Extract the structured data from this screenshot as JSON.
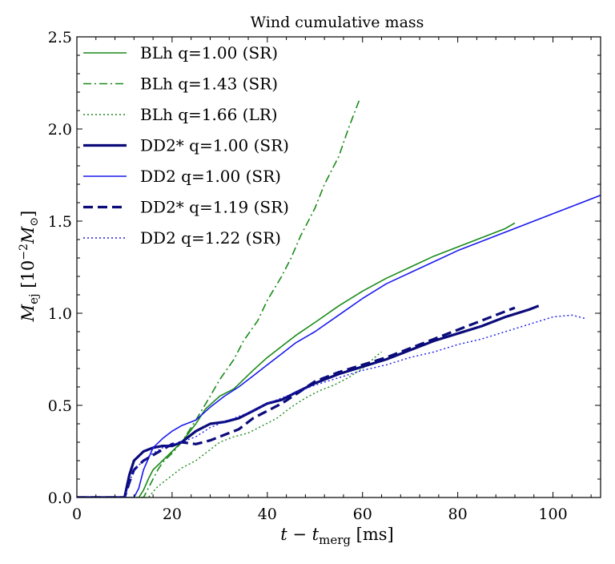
{
  "chart_data": {
    "type": "line",
    "title": "Wind cumulative mass",
    "xlabel": {
      "main": "t − t",
      "sub": "merg",
      "unit": " [ms]"
    },
    "ylabel": {
      "main": "M",
      "sub": "ej",
      "unit": " [10",
      "exp": "−2",
      "unit2": "M",
      "unit2_sub": "⊙",
      "close": "]"
    },
    "xlim": [
      0,
      110
    ],
    "ylim": [
      0,
      2.5
    ],
    "xticks": [
      0,
      20,
      40,
      60,
      80,
      100
    ],
    "xtick_labels": [
      "0",
      "20",
      "40",
      "60",
      "80",
      "100"
    ],
    "yticks": [
      0,
      0.5,
      1.0,
      1.5,
      2.0,
      2.5
    ],
    "ytick_labels": [
      "0.0",
      "0.5",
      "1.0",
      "1.5",
      "2.0",
      "2.5"
    ],
    "grid": false,
    "legend_position": "top-left",
    "series": [
      {
        "name": "BLh q=1.00 (SR)",
        "color": "#1a8a1a",
        "dash": "solid",
        "width": 1.6,
        "x": [
          0,
          13,
          14,
          15,
          16,
          18,
          20,
          22,
          25,
          27,
          30,
          33,
          35,
          37,
          40,
          43,
          46,
          50,
          55,
          60,
          65,
          70,
          75,
          80,
          85,
          90,
          92
        ],
        "y": [
          0,
          0,
          0.04,
          0.1,
          0.15,
          0.2,
          0.25,
          0.3,
          0.4,
          0.48,
          0.55,
          0.59,
          0.64,
          0.69,
          0.76,
          0.82,
          0.88,
          0.95,
          1.04,
          1.12,
          1.19,
          1.25,
          1.31,
          1.36,
          1.41,
          1.46,
          1.49
        ]
      },
      {
        "name": "BLh q=1.43 (SR)",
        "color": "#1a8a1a",
        "dash": "dashdot",
        "width": 1.6,
        "x": [
          0,
          14,
          15,
          16,
          17,
          18,
          20,
          22,
          25,
          28,
          30,
          33,
          35,
          38,
          40,
          43,
          45,
          47,
          50,
          52,
          55,
          57,
          59.5
        ],
        "y": [
          0,
          0,
          0.05,
          0.1,
          0.15,
          0.19,
          0.24,
          0.3,
          0.42,
          0.55,
          0.64,
          0.75,
          0.85,
          0.96,
          1.07,
          1.2,
          1.3,
          1.42,
          1.57,
          1.7,
          1.85,
          2.0,
          2.17
        ]
      },
      {
        "name": "BLh q=1.66 (LR)",
        "color": "#1a8a1a",
        "dash": "dotted",
        "width": 1.4,
        "x": [
          0,
          15,
          16,
          17,
          18,
          20,
          22,
          25,
          28,
          30,
          33,
          36,
          39,
          42,
          45,
          48,
          51,
          54,
          57,
          60,
          63,
          64
        ],
        "y": [
          0,
          0,
          0.03,
          0.06,
          0.08,
          0.12,
          0.16,
          0.2,
          0.26,
          0.3,
          0.33,
          0.35,
          0.39,
          0.43,
          0.49,
          0.54,
          0.58,
          0.61,
          0.65,
          0.7,
          0.77,
          0.79
        ]
      },
      {
        "name": "DD2* q=1.00 (SR)",
        "color": "#0b0b7a",
        "dash": "solid",
        "width": 3.2,
        "x": [
          0,
          10,
          11,
          12,
          14,
          16,
          18,
          20,
          22,
          25,
          28,
          31,
          34,
          37,
          40,
          43,
          46,
          50,
          55,
          60,
          65,
          70,
          75,
          80,
          85,
          90,
          95,
          97
        ],
        "y": [
          0,
          0,
          0.12,
          0.2,
          0.25,
          0.27,
          0.28,
          0.28,
          0.3,
          0.36,
          0.4,
          0.41,
          0.43,
          0.47,
          0.51,
          0.53,
          0.57,
          0.62,
          0.67,
          0.71,
          0.75,
          0.8,
          0.85,
          0.89,
          0.93,
          0.98,
          1.02,
          1.04
        ]
      },
      {
        "name": "DD2 q=1.00 (SR)",
        "color": "#1a1aee",
        "dash": "solid",
        "width": 1.6,
        "x": [
          0,
          12,
          13,
          14,
          16,
          18,
          20,
          22,
          25,
          28,
          31,
          34,
          37,
          40,
          43,
          46,
          50,
          55,
          60,
          65,
          70,
          75,
          80,
          85,
          90,
          95,
          100,
          105,
          110
        ],
        "y": [
          0,
          0,
          0.05,
          0.15,
          0.27,
          0.32,
          0.36,
          0.39,
          0.42,
          0.49,
          0.55,
          0.6,
          0.66,
          0.72,
          0.78,
          0.84,
          0.9,
          0.99,
          1.08,
          1.16,
          1.22,
          1.28,
          1.34,
          1.39,
          1.44,
          1.49,
          1.54,
          1.59,
          1.64
        ]
      },
      {
        "name": "DD2* q=1.19 (SR)",
        "color": "#0b0b7a",
        "dash": "dashed",
        "width": 3.2,
        "x": [
          0,
          10,
          11,
          12,
          14,
          16,
          18,
          20,
          22,
          25,
          28,
          31,
          34,
          37,
          40,
          43,
          46,
          50,
          55,
          60,
          65,
          70,
          75,
          80,
          85,
          90,
          92
        ],
        "y": [
          0,
          0,
          0.08,
          0.15,
          0.2,
          0.23,
          0.26,
          0.29,
          0.3,
          0.29,
          0.31,
          0.34,
          0.37,
          0.43,
          0.47,
          0.51,
          0.56,
          0.63,
          0.68,
          0.72,
          0.76,
          0.81,
          0.86,
          0.91,
          0.96,
          1.01,
          1.03
        ]
      },
      {
        "name": "DD2 q=1.22 (SR)",
        "color": "#1a1aee",
        "dash": "dotted",
        "width": 1.4,
        "x": [
          0,
          10,
          11,
          12,
          14,
          16,
          18,
          20,
          22,
          25,
          28,
          31,
          34,
          37,
          40,
          43,
          46,
          50,
          55,
          60,
          65,
          70,
          75,
          80,
          85,
          90,
          95,
          100,
          104,
          107
        ],
        "y": [
          0,
          0,
          0.08,
          0.15,
          0.2,
          0.24,
          0.27,
          0.29,
          0.3,
          0.33,
          0.38,
          0.41,
          0.44,
          0.47,
          0.51,
          0.54,
          0.57,
          0.61,
          0.65,
          0.69,
          0.72,
          0.76,
          0.79,
          0.83,
          0.86,
          0.9,
          0.94,
          0.98,
          0.99,
          0.97
        ]
      }
    ]
  }
}
